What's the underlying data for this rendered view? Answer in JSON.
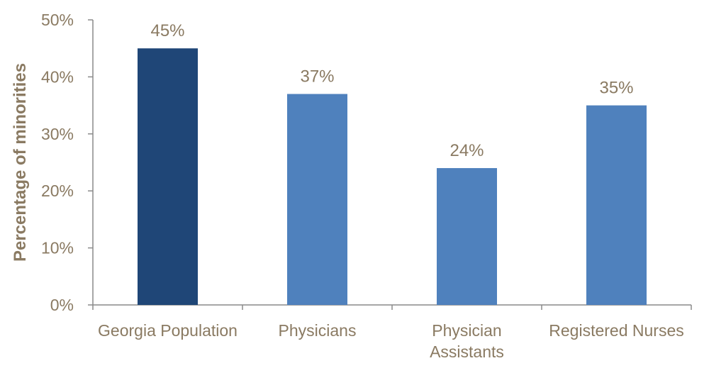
{
  "chart_data": {
    "type": "bar",
    "categories": [
      "Georgia Population",
      "Physicians",
      "Physician Assistants",
      "Registered Nurses"
    ],
    "category_lines": [
      [
        "Georgia Population"
      ],
      [
        "Physicians"
      ],
      [
        "Physician",
        "Assistants"
      ],
      [
        "Registered Nurses"
      ]
    ],
    "values": [
      45,
      37,
      24,
      35
    ],
    "value_labels": [
      "45%",
      "37%",
      "24%",
      "35%"
    ],
    "bar_colors": [
      "#1f4677",
      "#4f81bd",
      "#4f81bd",
      "#4f81bd"
    ],
    "ylabel": "Percentage of minorities",
    "xlabel": "",
    "ylim": [
      0,
      50
    ],
    "yticks": [
      0,
      10,
      20,
      30,
      40,
      50
    ],
    "ytick_labels": [
      "0%",
      "10%",
      "20%",
      "30%",
      "40%",
      "50%"
    ],
    "grid": false,
    "legend": "none"
  }
}
